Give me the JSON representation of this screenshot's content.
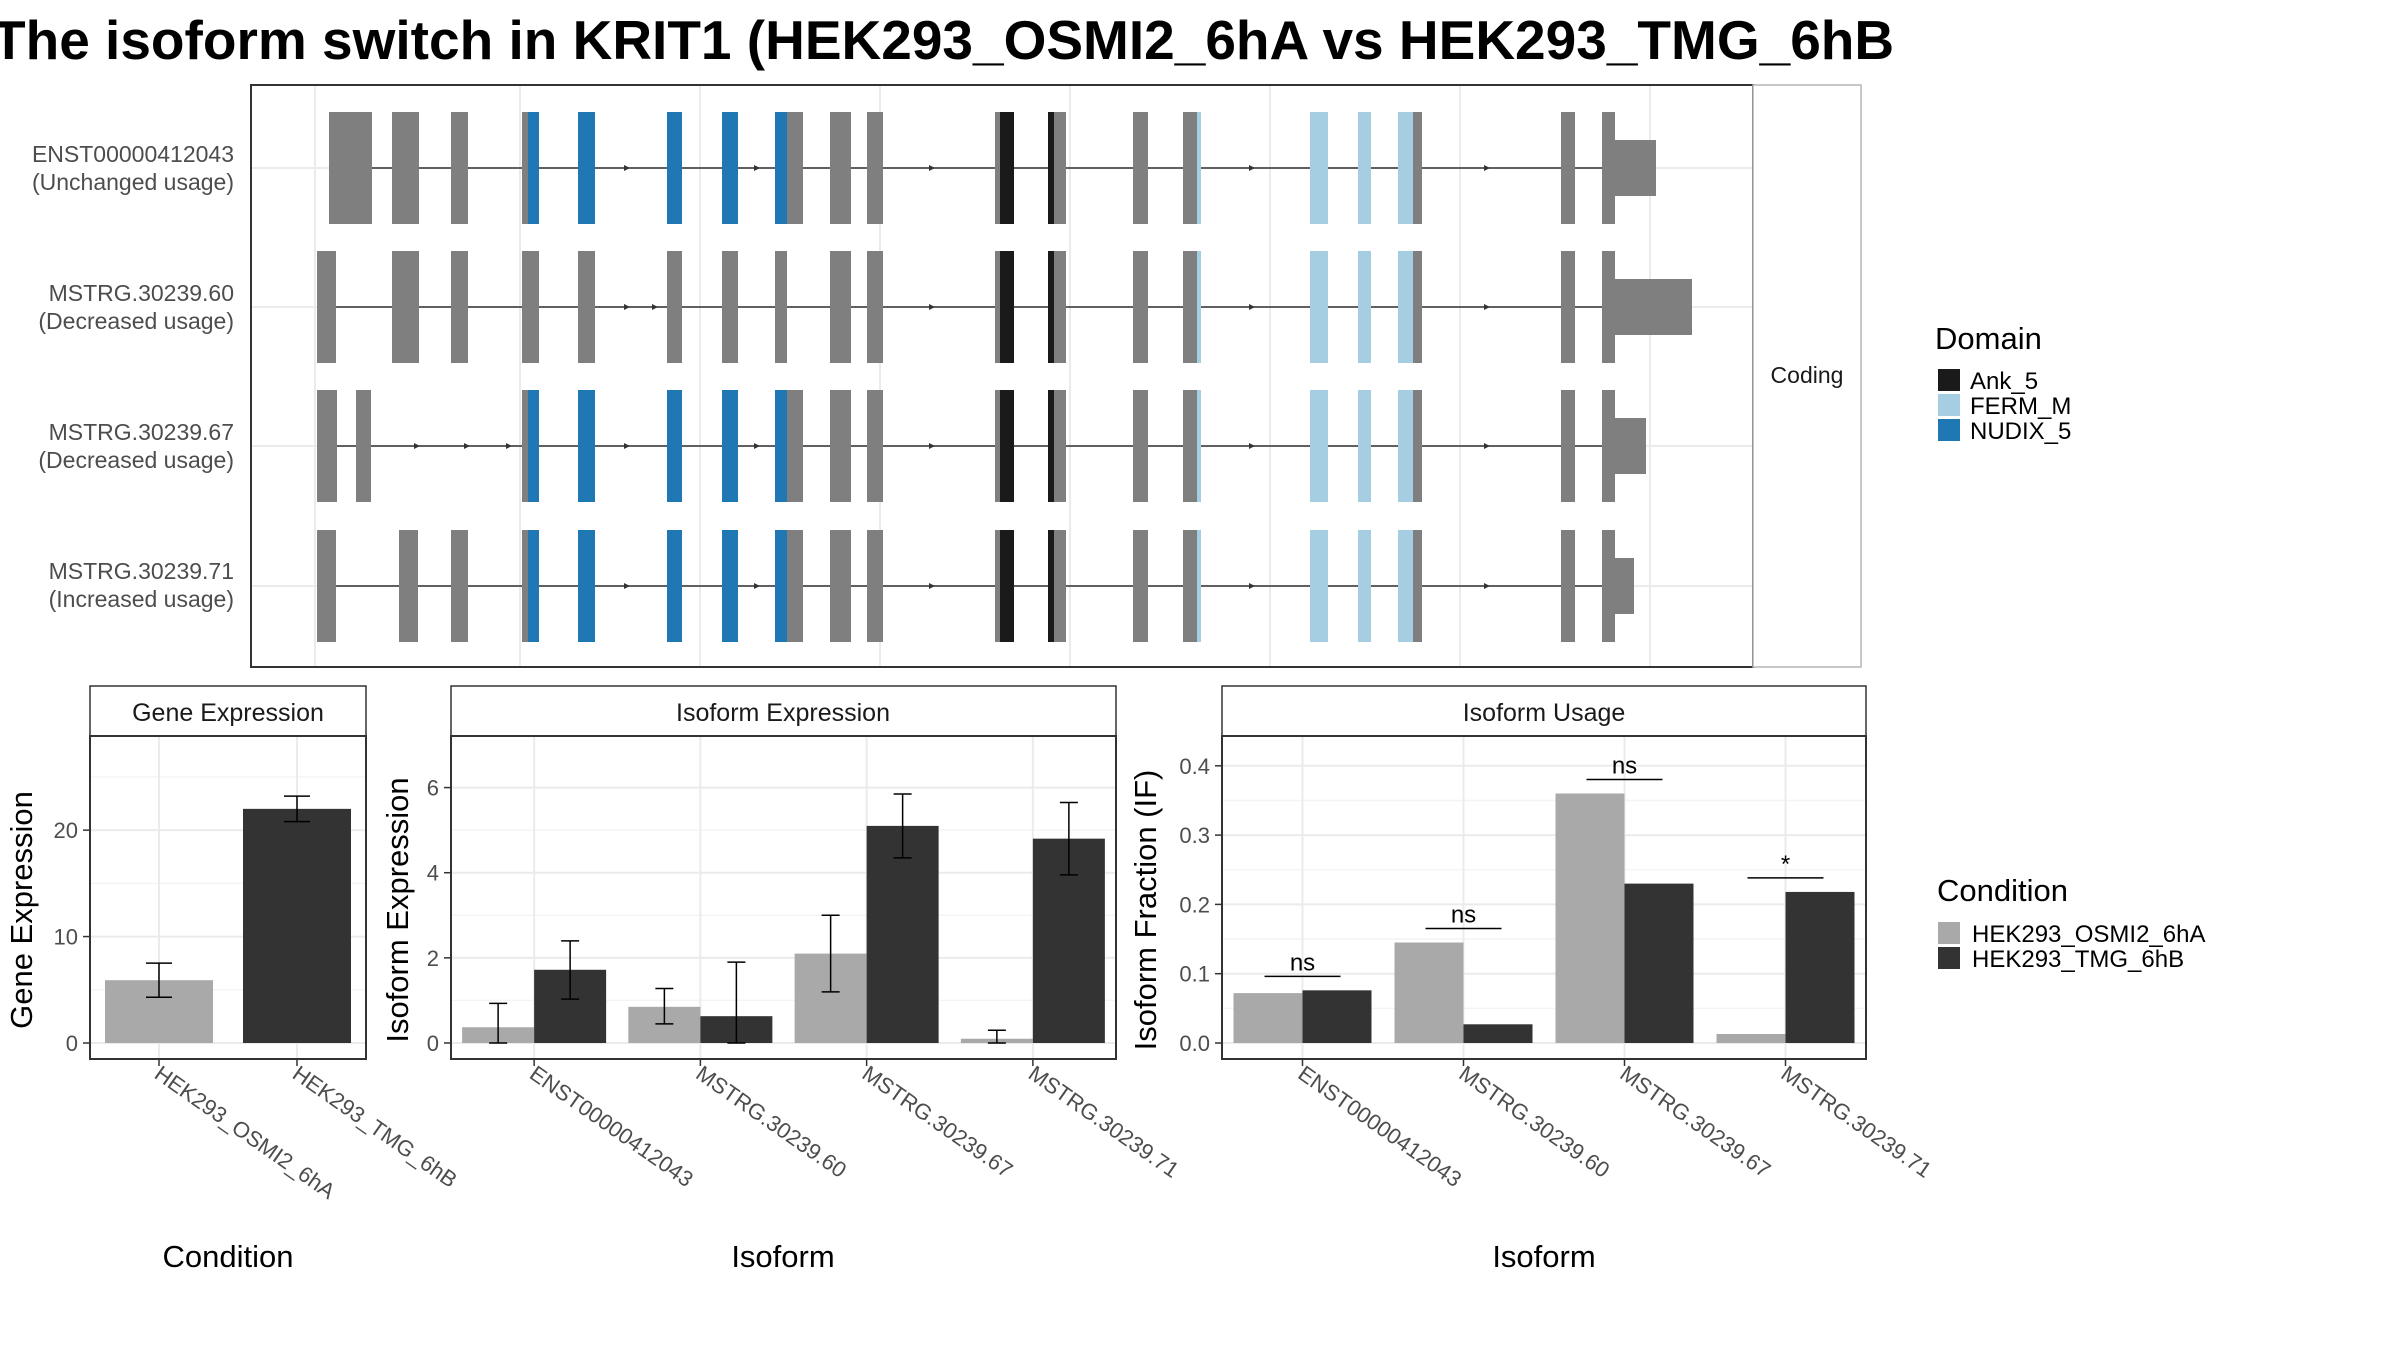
{
  "title": "The isoform switch in KRIT1 (HEK293_OSMI2_6hA vs HEK293_TMG_6hB",
  "colors": {
    "exon": "#7f7f7f",
    "ank": "#1a1a1a",
    "ferm": "#a6cee3",
    "nudix": "#1f78b4",
    "condA": "#a9a9a9",
    "condB": "#333333",
    "grid": "#ebebeb",
    "panel_border": "#333333",
    "strip_bg": "#ffffff"
  },
  "structure": {
    "facet_label": "Coding",
    "isoforms": [
      {
        "id": "ENST00000412043",
        "usage": "(Unchanged usage)"
      },
      {
        "id": "MSTRG.30239.60",
        "usage": "(Decreased usage)"
      },
      {
        "id": "MSTRG.30239.67",
        "usage": "(Decreased usage)"
      },
      {
        "id": "MSTRG.30239.71",
        "usage": "(Increased usage)"
      }
    ]
  },
  "domain_legend": {
    "title": "Domain",
    "items": [
      {
        "label": "Ank_5",
        "color": "#1a1a1a"
      },
      {
        "label": "FERM_M",
        "color": "#a6cee3"
      },
      {
        "label": "NUDIX_5",
        "color": "#1f78b4"
      }
    ]
  },
  "condition_legend": {
    "title": "Condition",
    "items": [
      {
        "label": "HEK293_OSMI2_6hA",
        "color": "#a9a9a9"
      },
      {
        "label": "HEK293_TMG_6hB",
        "color": "#333333"
      }
    ]
  },
  "chart_data": [
    {
      "type": "bar",
      "title": "Gene Expression",
      "xlabel": "Condition",
      "ylabel": "Gene Expression",
      "ylim": [
        0,
        28
      ],
      "yticks": [
        0,
        10,
        20
      ],
      "categories": [
        "HEK293_OSMI2_6hA",
        "HEK293_TMG_6hB"
      ],
      "values": [
        5.9,
        22.0
      ],
      "error": [
        [
          4.3,
          7.5
        ],
        [
          20.8,
          23.2
        ]
      ],
      "colors": [
        "#a9a9a9",
        "#333333"
      ]
    },
    {
      "type": "bar",
      "title": "Isoform Expression",
      "xlabel": "Isoform",
      "ylabel": "Isoform Expression",
      "ylim": [
        0,
        7
      ],
      "yticks": [
        0,
        2,
        4,
        6
      ],
      "categories": [
        "ENST00000412043",
        "MSTRG.30239.60",
        "MSTRG.30239.67",
        "MSTRG.30239.71"
      ],
      "series": [
        {
          "name": "HEK293_OSMI2_6hA",
          "values": [
            0.37,
            0.85,
            2.1,
            0.1
          ],
          "error": [
            [
              0.0,
              0.93
            ],
            [
              0.45,
              1.28
            ],
            [
              1.2,
              3.0
            ],
            [
              0.0,
              0.3
            ]
          ]
        },
        {
          "name": "HEK293_TMG_6hB",
          "values": [
            1.72,
            0.63,
            5.1,
            4.8
          ],
          "error": [
            [
              1.03,
              2.4
            ],
            [
              0.0,
              1.9
            ],
            [
              4.35,
              5.85
            ],
            [
              3.95,
              5.65
            ]
          ]
        }
      ]
    },
    {
      "type": "bar",
      "title": "Isoform Usage",
      "xlabel": "Isoform",
      "ylabel": "Isoform Fraction (IF)",
      "ylim": [
        0,
        0.43
      ],
      "yticks": [
        "0.0",
        "0.1",
        "0.2",
        "0.3",
        "0.4"
      ],
      "categories": [
        "ENST00000412043",
        "MSTRG.30239.60",
        "MSTRG.30239.67",
        "MSTRG.30239.71"
      ],
      "series": [
        {
          "name": "HEK293_OSMI2_6hA",
          "values": [
            0.072,
            0.145,
            0.36,
            0.013
          ]
        },
        {
          "name": "HEK293_TMG_6hB",
          "values": [
            0.076,
            0.027,
            0.23,
            0.218
          ]
        }
      ],
      "significance": [
        "ns",
        "ns",
        "ns",
        "*"
      ]
    }
  ]
}
